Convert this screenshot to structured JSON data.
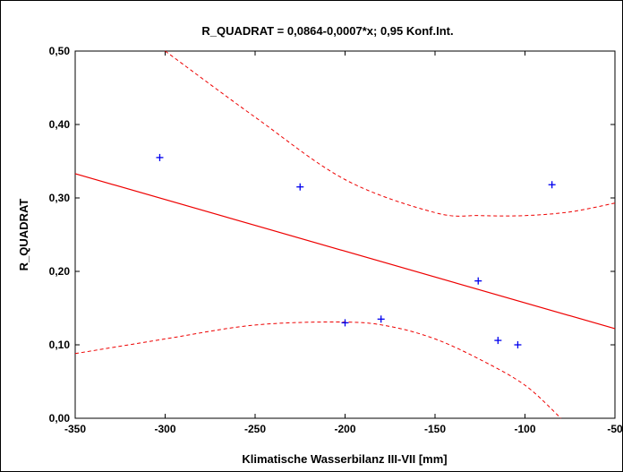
{
  "chart_data": {
    "type": "scatter",
    "title": "R_QUADRAT = 0,0864-0,0007*x; 0,95 Konf.Int.",
    "xlabel": "Klimatische Wasserbilanz III-VII [mm]",
    "ylabel": "R_QUADRAT",
    "xlim": [
      -350,
      -50
    ],
    "ylim": [
      0.0,
      0.5
    ],
    "x_ticks": [
      -350,
      -300,
      -250,
      -200,
      -150,
      -100,
      -50
    ],
    "x_tick_labels": [
      "-350",
      "-300",
      "-250",
      "-200",
      "-150",
      "-100",
      "-50"
    ],
    "y_ticks": [
      0.0,
      0.1,
      0.2,
      0.3,
      0.4,
      0.5
    ],
    "y_tick_labels": [
      "0,00",
      "0,10",
      "0,20",
      "0,30",
      "0,40",
      "0,50"
    ],
    "grid": false,
    "points": {
      "x": [
        -303,
        -225,
        -200,
        -180,
        -126,
        -115,
        -104,
        -85
      ],
      "y": [
        0.355,
        0.315,
        0.13,
        0.135,
        0.187,
        0.106,
        0.1,
        0.318
      ]
    },
    "regression_line": {
      "x": [
        -350,
        -50
      ],
      "y": [
        0.333,
        0.122
      ]
    },
    "confidence_upper": {
      "x": [
        -300,
        -250,
        -200,
        -150,
        -125,
        -100,
        -75,
        -50
      ],
      "y": [
        0.5,
        0.41,
        0.325,
        0.28,
        0.276,
        0.276,
        0.281,
        0.293
      ]
    },
    "confidence_lower": {
      "x": [
        -350,
        -300,
        -250,
        -200,
        -175,
        -150,
        -125,
        -100,
        -80
      ],
      "y": [
        0.088,
        0.108,
        0.127,
        0.131,
        0.125,
        0.108,
        0.08,
        0.045,
        0.0
      ]
    },
    "colors": {
      "point": "#0000ee",
      "line": "#ee0000",
      "axis": "#000000",
      "frame_background": "#ffffff"
    }
  }
}
